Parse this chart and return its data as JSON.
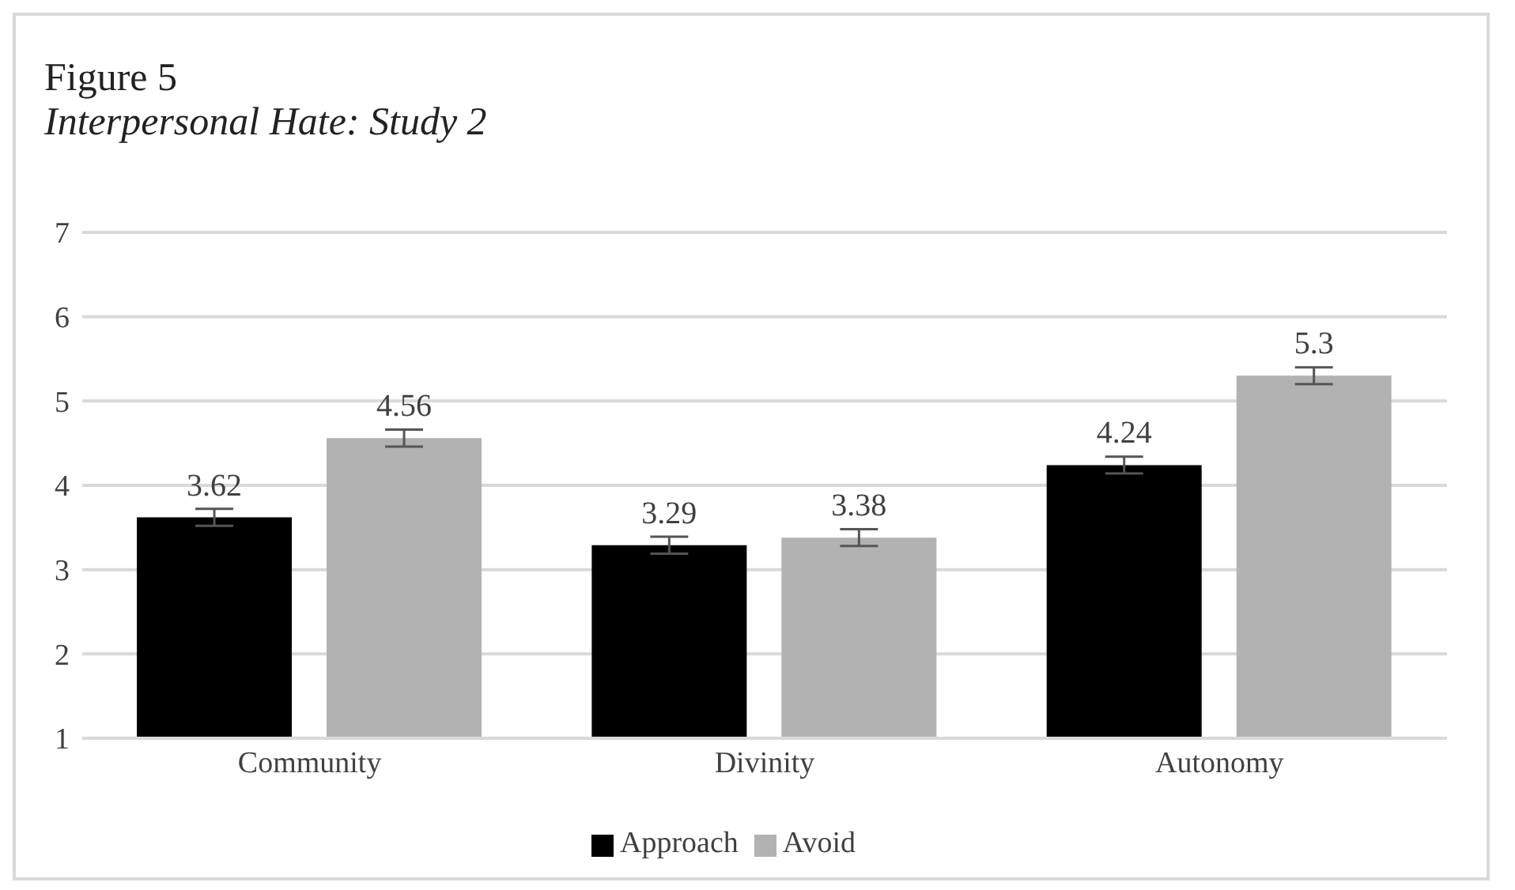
{
  "chart_data": {
    "type": "bar",
    "title": "Figure 5",
    "subtitle": "Interpersonal Hate: Study 2",
    "categories": [
      "Community",
      "Divinity",
      "Autonomy"
    ],
    "series": [
      {
        "name": "Approach",
        "color": "#000000",
        "values": [
          3.62,
          3.29,
          4.24
        ],
        "errors": [
          0.1,
          0.1,
          0.1
        ]
      },
      {
        "name": "Avoid",
        "color": "#b2b2b2",
        "values": [
          4.56,
          3.38,
          5.3
        ],
        "errors": [
          0.1,
          0.1,
          0.1
        ]
      }
    ],
    "ylim": [
      1,
      7
    ],
    "yticks": [
      1,
      2,
      3,
      4,
      5,
      6,
      7
    ],
    "grid": "y",
    "legend": "bottom",
    "data_labels": true
  }
}
